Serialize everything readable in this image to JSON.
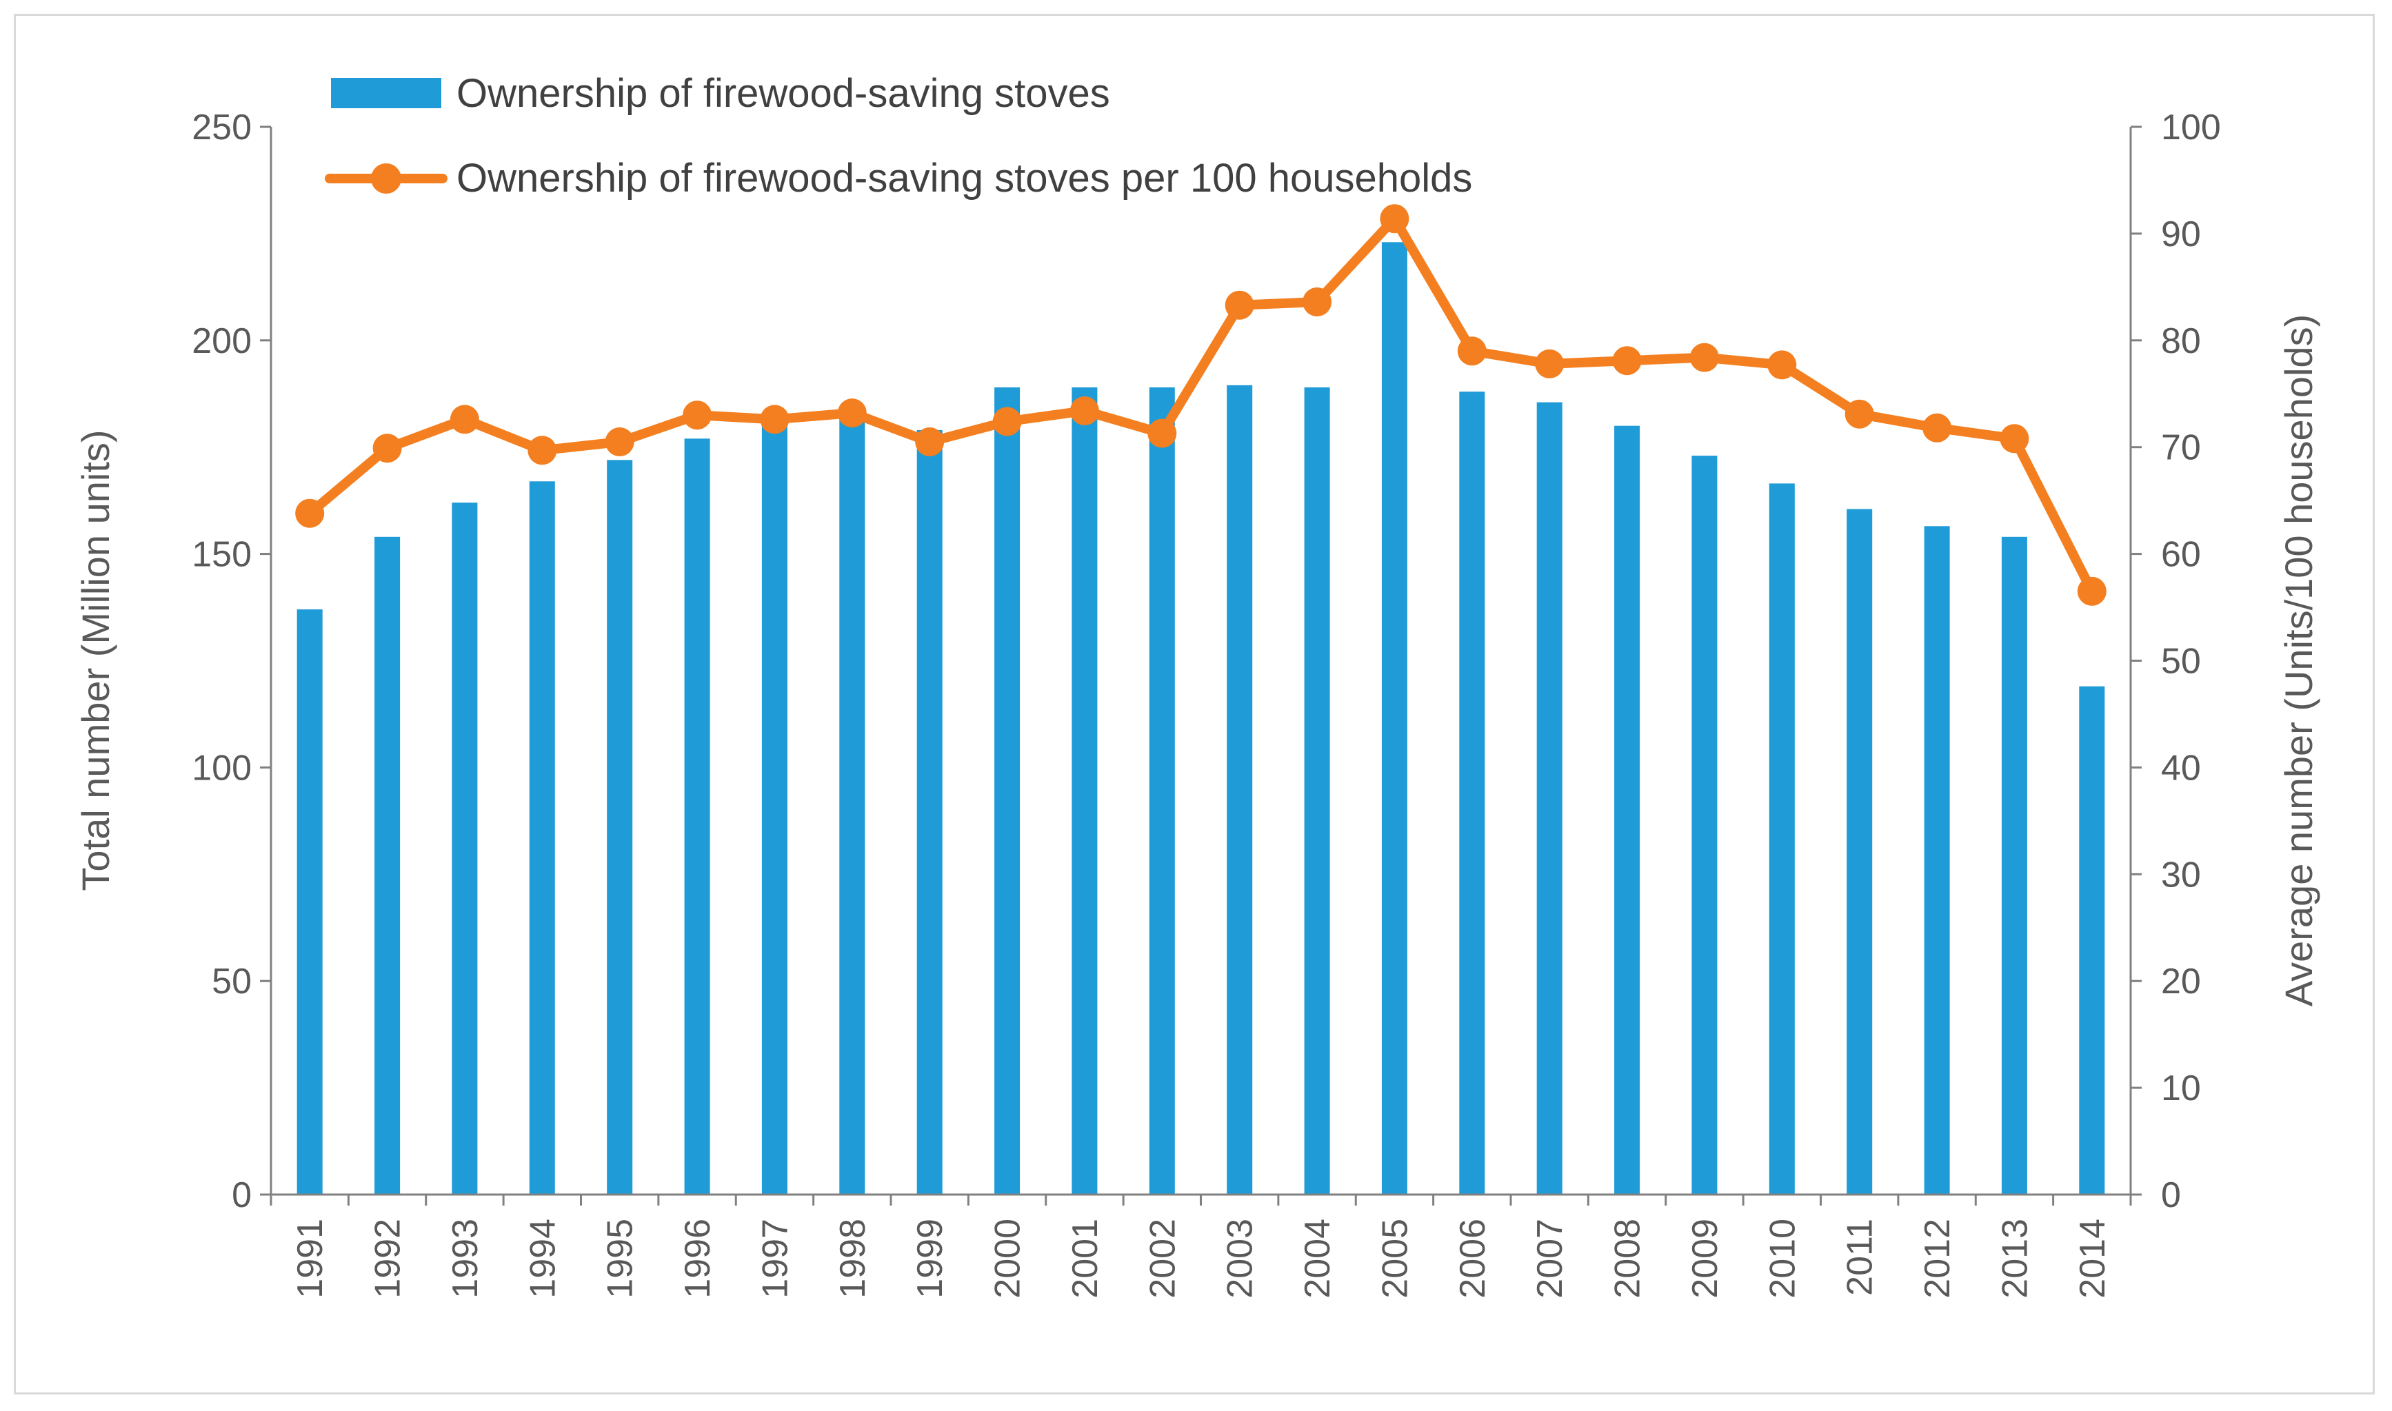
{
  "chart_data": {
    "type": "bar+line",
    "title": "",
    "categories": [
      "1991",
      "1992",
      "1993",
      "1994",
      "1995",
      "1996",
      "1997",
      "1998",
      "1999",
      "2000",
      "2001",
      "2002",
      "2003",
      "2004",
      "2005",
      "2006",
      "2007",
      "2008",
      "2009",
      "2010",
      "2011",
      "2012",
      "2013",
      "2014"
    ],
    "series": [
      {
        "name": "Ownership of firewood-saving stoves",
        "type": "bar",
        "axis": "left",
        "color": "#1f9bd7",
        "values": [
          137,
          154,
          162,
          167,
          172,
          177,
          180,
          182,
          179,
          189,
          189,
          189,
          189.5,
          189,
          223,
          188,
          185.5,
          180,
          173,
          166.5,
          160.5,
          156.5,
          154,
          119
        ]
      },
      {
        "name": "Ownership of firewood-saving stoves per 100 households",
        "type": "line",
        "axis": "right",
        "color": "#f47f20",
        "values": [
          63.8,
          69.9,
          72.6,
          69.7,
          70.5,
          73,
          72.6,
          73.2,
          70.5,
          72.4,
          73.4,
          71.3,
          83.3,
          83.6,
          91.4,
          79,
          77.8,
          78.1,
          78.4,
          77.7,
          73.1,
          71.8,
          70.8,
          56.5
        ]
      }
    ],
    "ylabel": "Total number (Million units)",
    "y2label": "Average number (Units/100 households)",
    "ylim": [
      0,
      250
    ],
    "y2lim": [
      0,
      100
    ],
    "yticks": [
      "0",
      "50",
      "100",
      "150",
      "200",
      "250"
    ],
    "y2ticks": [
      "0",
      "10",
      "20",
      "30",
      "40",
      "50",
      "60",
      "70",
      "80",
      "90",
      "100"
    ],
    "legend_position": "top-left",
    "grid": false
  }
}
